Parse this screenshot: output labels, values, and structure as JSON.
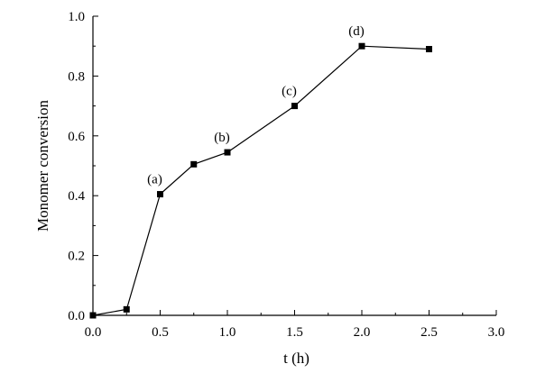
{
  "chart_data": {
    "type": "line",
    "xlabel": "t (h)",
    "ylabel": "Monomer conversion",
    "xlim": [
      0.0,
      3.0
    ],
    "ylim": [
      0.0,
      1.0
    ],
    "x_ticks": [
      "0.0",
      "0.5",
      "1.0",
      "1.5",
      "2.0",
      "2.5",
      "3.0"
    ],
    "y_ticks": [
      "0.0",
      "0.2",
      "0.4",
      "0.6",
      "0.8",
      "1.0"
    ],
    "grid": false,
    "marker": "square",
    "series": [
      {
        "x": [
          0.0,
          0.25,
          0.5,
          0.75,
          1.0,
          1.5,
          2.0,
          2.5
        ],
        "y": [
          0.0,
          0.02,
          0.405,
          0.505,
          0.545,
          0.7,
          0.9,
          0.89
        ]
      }
    ],
    "annotations": [
      {
        "text": "(a)",
        "x": 0.5,
        "y": 0.405
      },
      {
        "text": "(b)",
        "x": 1.0,
        "y": 0.545
      },
      {
        "text": "(c)",
        "x": 1.5,
        "y": 0.7
      },
      {
        "text": "(d)",
        "x": 2.0,
        "y": 0.9
      }
    ]
  }
}
